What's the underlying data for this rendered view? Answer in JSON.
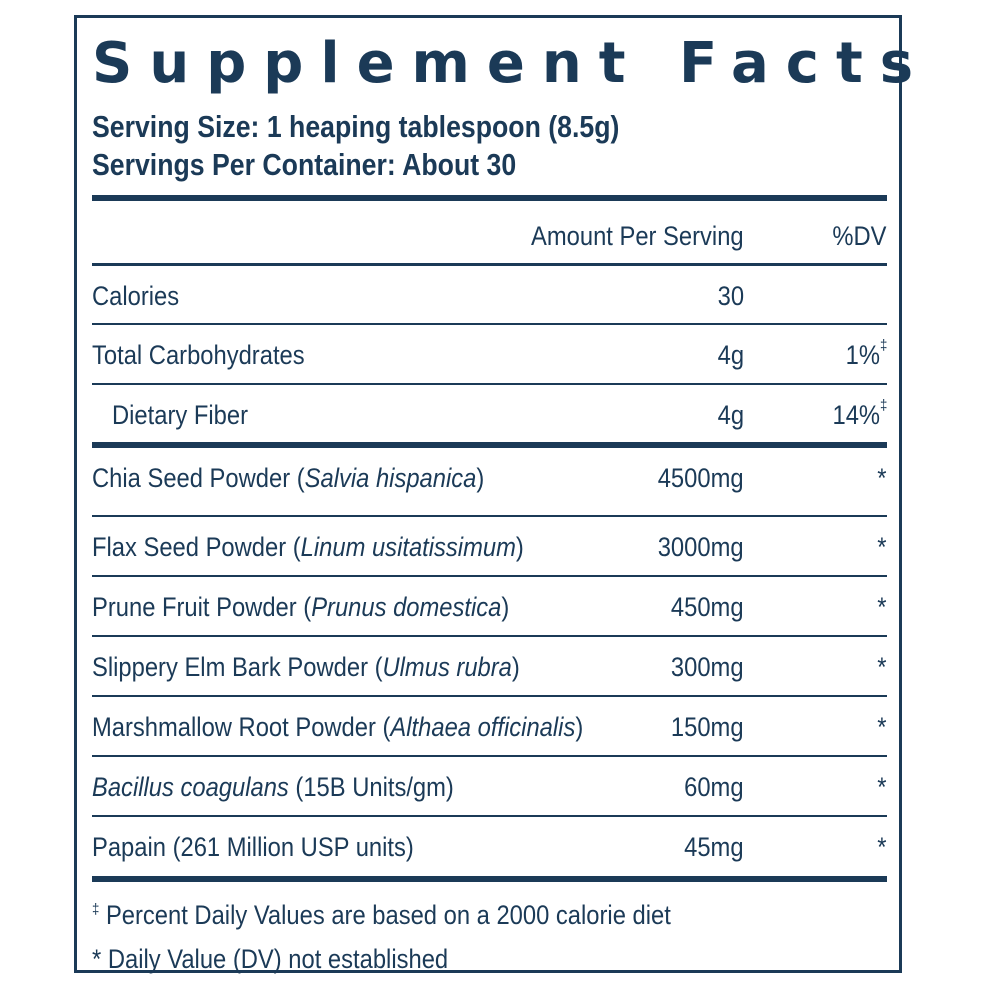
{
  "title": "Supplement Facts",
  "serving_size": "Serving Size: 1 heaping tablespoon (8.5g)",
  "servings_per_container": "Servings Per Container: About 30",
  "header": {
    "amount": "Amount Per Serving",
    "dv": "%DV"
  },
  "nutrients": [
    {
      "name": "Calories",
      "amount": "30",
      "dv": "",
      "mark": ""
    },
    {
      "name": "Total Carbohydrates",
      "amount": "4g",
      "dv": "1%",
      "mark": "‡"
    },
    {
      "name": "Dietary Fiber",
      "amount": "4g",
      "dv": "14%",
      "mark": "‡"
    }
  ],
  "ingredients": [
    {
      "name": "Chia Seed Powder (",
      "latin": "Salvia hispanica",
      "close": ")",
      "amount": "4500mg",
      "dv": "*"
    },
    {
      "name": "Flax Seed Powder (",
      "latin": "Linum usitatissimum",
      "close": ")",
      "amount": "3000mg",
      "dv": "*"
    },
    {
      "name": "Prune Fruit Powder (",
      "latin": "Prunus domestica",
      "close": ")",
      "amount": "450mg",
      "dv": "*"
    },
    {
      "name": "Slippery Elm Bark Powder (",
      "latin": "Ulmus rubra",
      "close": ")",
      "amount": "300mg",
      "dv": "*"
    },
    {
      "name": "Marshmallow Root Powder (",
      "latin": "Althaea officinalis",
      "close": ")",
      "amount": "150mg",
      "dv": "*"
    },
    {
      "latin": "Bacillus coagulans",
      "rest": " (15B Units/gm)",
      "amount": "60mg",
      "dv": "*"
    },
    {
      "name": "Papain (261 Million USP units)",
      "amount": "45mg",
      "dv": "*"
    }
  ],
  "footnotes": {
    "daily_values_mark": "‡",
    "daily_values": " Percent Daily Values are based on a 2000 calorie diet",
    "not_established": "* Daily Value (DV) not established"
  },
  "colors": {
    "ink": "#1b3a57",
    "background": "#ffffff"
  }
}
